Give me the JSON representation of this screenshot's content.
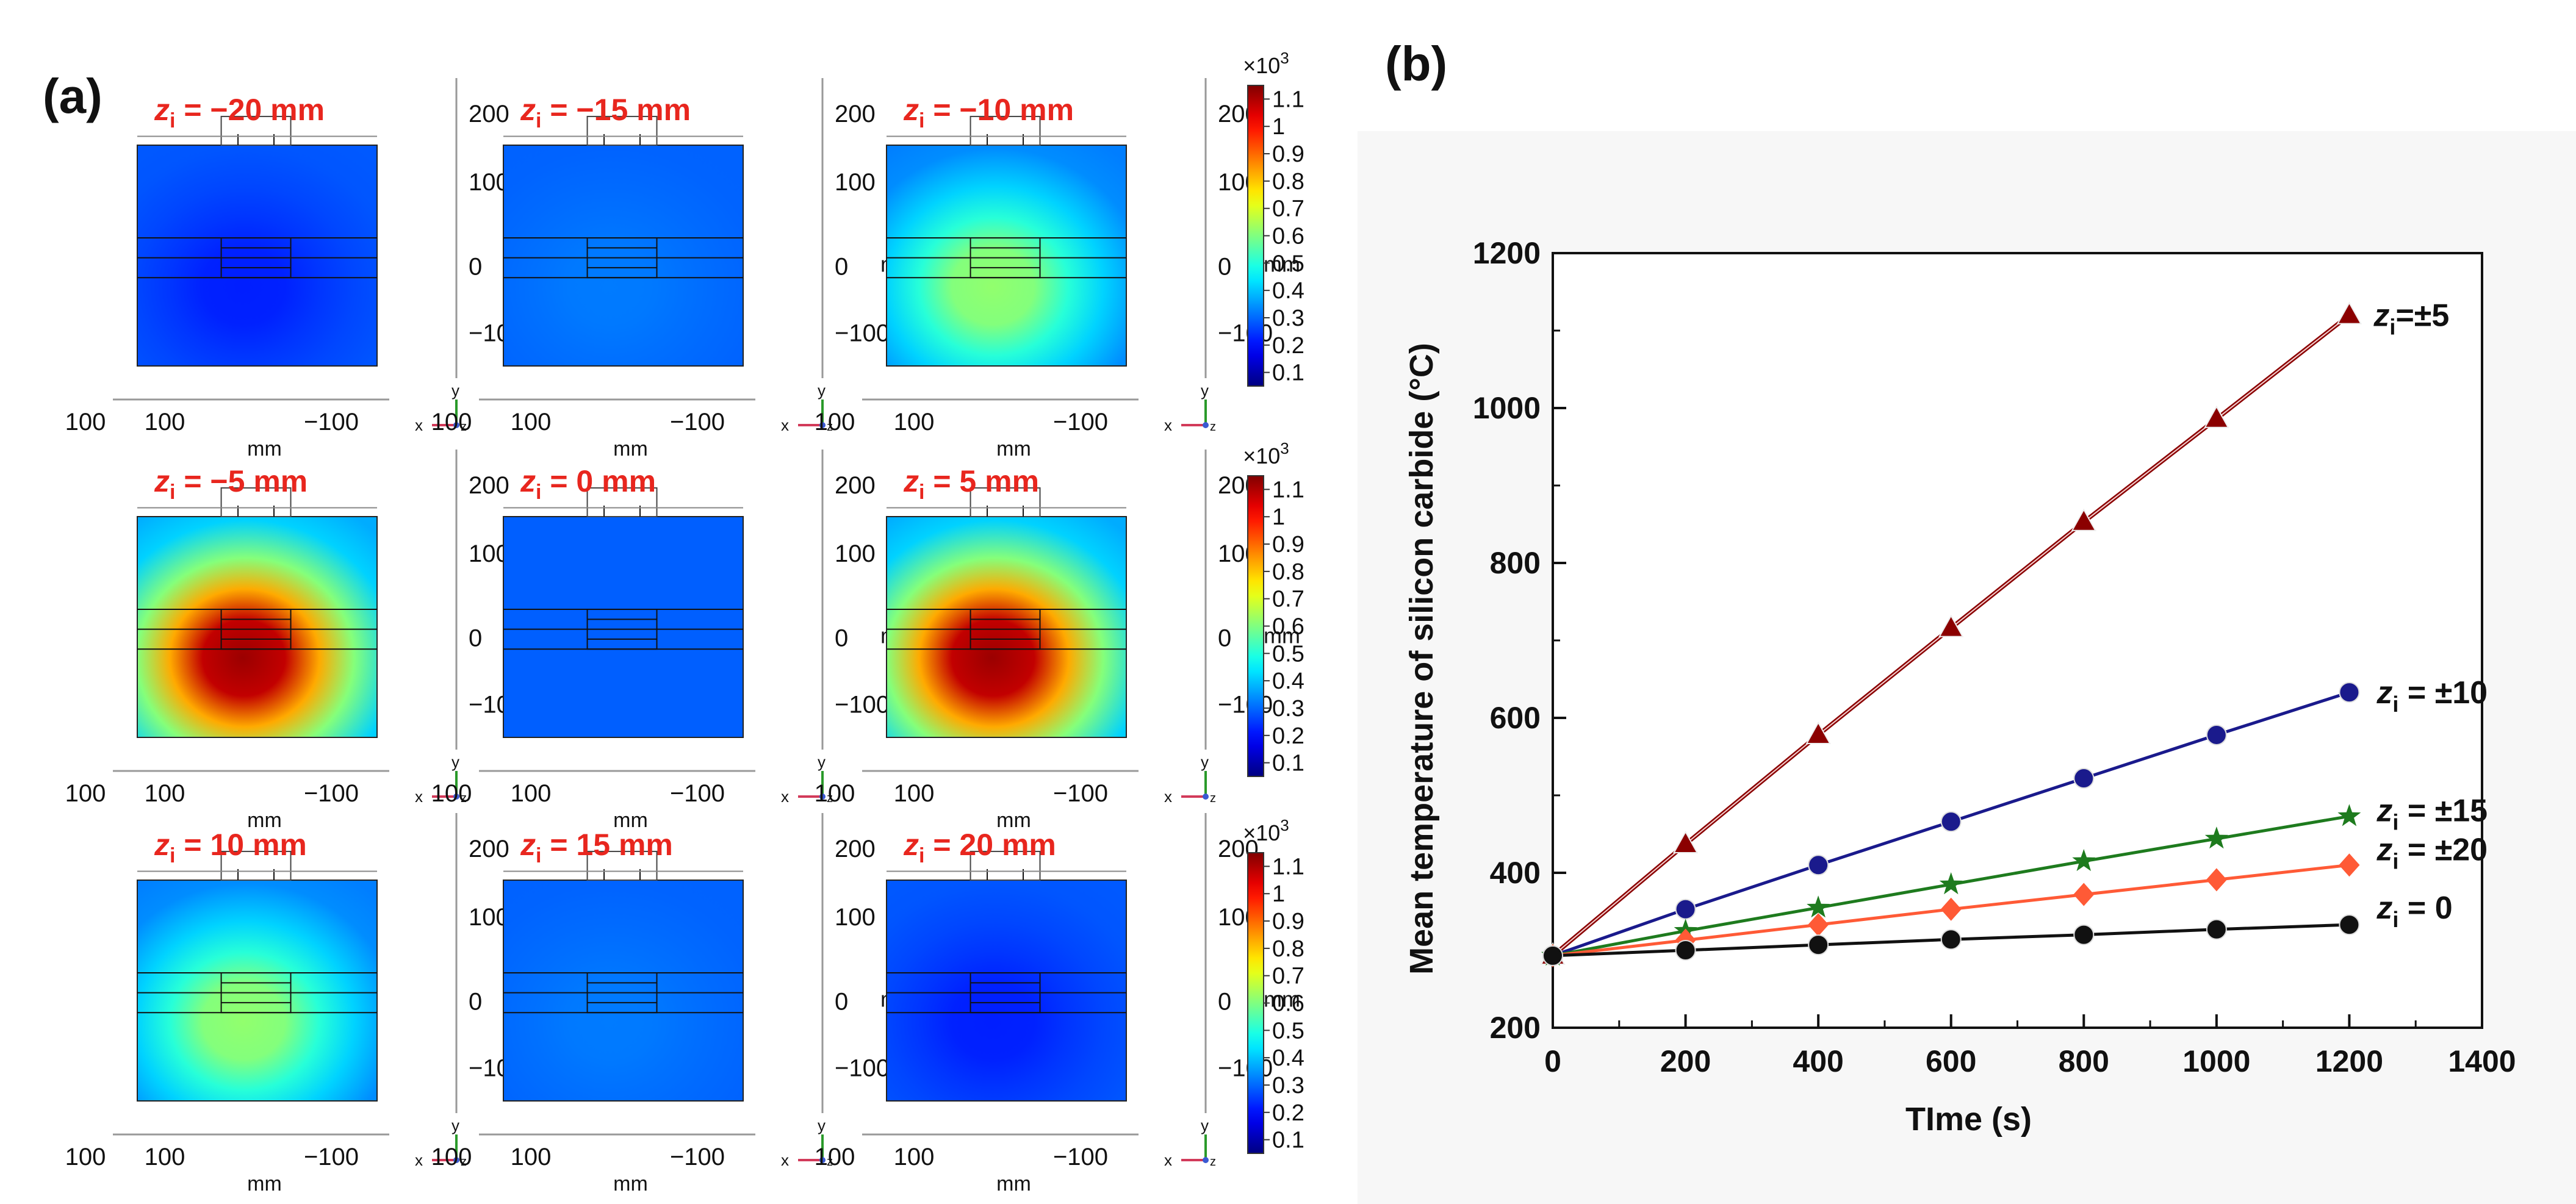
{
  "figure": {
    "panel_a_label": "(a)",
    "panel_b_label": "(b)"
  },
  "heatmaps": {
    "unit": "mm",
    "y_ticks": [
      "200",
      "100",
      "0",
      "−100"
    ],
    "x_ticks": [
      "100",
      "100",
      "−100"
    ],
    "x_axis_label": "mm",
    "y_axis_label": "mm",
    "triad_y": "y",
    "triad_x": "x",
    "triad_z": "z",
    "panels": [
      {
        "var": "z",
        "sub": "i",
        "value": " = −20 mm",
        "z_mm": -20,
        "level": 0.22
      },
      {
        "var": "z",
        "sub": "i",
        "value": " = −15 mm",
        "z_mm": -15,
        "level": 0.32
      },
      {
        "var": "z",
        "sub": "i",
        "value": " = −10 mm",
        "z_mm": -10,
        "level": 0.62
      },
      {
        "var": "z",
        "sub": "i",
        "value": " = −5 mm",
        "z_mm": -5,
        "level": 1.12
      },
      {
        "var": "z",
        "sub": "i",
        "value": " = 0 mm",
        "z_mm": 0,
        "level": 0.29
      },
      {
        "var": "z",
        "sub": "i",
        "value": " = 5 mm",
        "z_mm": 5,
        "level": 1.12
      },
      {
        "var": "z",
        "sub": "i",
        "value": " = 10 mm",
        "z_mm": 10,
        "level": 0.62
      },
      {
        "var": "z",
        "sub": "i",
        "value": " = 15 mm",
        "z_mm": 15,
        "level": 0.32
      },
      {
        "var": "z",
        "sub": "i",
        "value": " = 20 mm",
        "z_mm": 20,
        "level": 0.22
      }
    ],
    "colorbar": {
      "multiplier": "×10",
      "exponent": "3",
      "ticks": [
        "1.1",
        "1",
        "0.9",
        "0.8",
        "0.7",
        "0.6",
        "0.5",
        "0.4",
        "0.3",
        "0.2",
        "0.1"
      ],
      "range": [
        0.05,
        1.15
      ]
    }
  },
  "chart_data": {
    "type": "line",
    "title": "",
    "xlabel": "TIme (s)",
    "ylabel": "Mean temperature of silicon carbide (°C)",
    "xlim": [
      0,
      1400
    ],
    "ylim": [
      200,
      1200
    ],
    "x_ticks": [
      0,
      200,
      400,
      600,
      800,
      1000,
      1200,
      1400
    ],
    "y_ticks": [
      200,
      400,
      600,
      800,
      1000,
      1200
    ],
    "x": [
      0,
      200,
      400,
      600,
      800,
      1000,
      1200
    ],
    "series": [
      {
        "name": "z_i=±5",
        "var": "z",
        "sub": "i",
        "label": "=±5",
        "marker": "triangle",
        "color": "#8b0000",
        "values": [
          293,
          437,
          578,
          716,
          853,
          986,
          1120
        ]
      },
      {
        "name": "z_i = ±10",
        "var": "z",
        "sub": "i",
        "label": " = ±10",
        "marker": "circle",
        "color": "#1a1a8c",
        "values": [
          293,
          353,
          410,
          466,
          522,
          578,
          633
        ]
      },
      {
        "name": "z_i = ±15",
        "var": "z",
        "sub": "i",
        "label": " = ±15",
        "marker": "star",
        "color": "#1e7b1e",
        "values": [
          293,
          325,
          355,
          385,
          415,
          444,
          473
        ]
      },
      {
        "name": "z_i = ±20",
        "var": "z",
        "sub": "i",
        "label": " = ±20",
        "marker": "diamond",
        "color": "#ff5a36",
        "values": [
          293,
          313,
          333,
          353,
          372,
          391,
          410
        ]
      },
      {
        "name": "z_i = 0",
        "var": "z",
        "sub": "i",
        "label": " = 0",
        "marker": "circle",
        "color": "#111111",
        "values": [
          293,
          300,
          307,
          314,
          320,
          327,
          333
        ]
      }
    ]
  }
}
